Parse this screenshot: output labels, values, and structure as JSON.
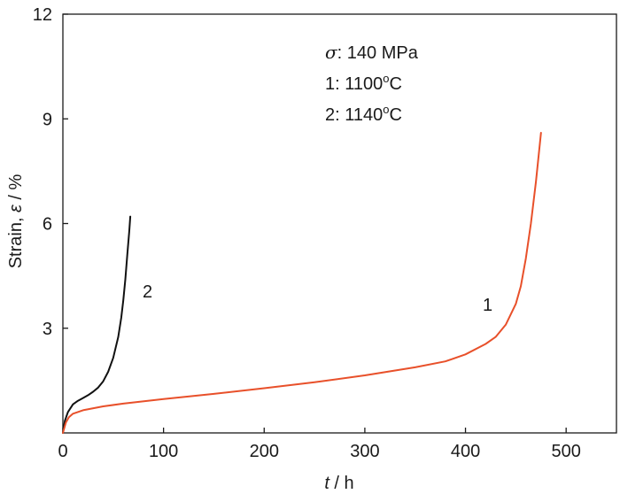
{
  "chart_data": {
    "type": "line",
    "title": "",
    "xlabel": {
      "var": "t",
      "unit": " / h"
    },
    "ylabel": {
      "text": "Strain, ",
      "var": "ε",
      "unit": " / %"
    },
    "xlim": [
      0,
      550
    ],
    "ylim": [
      0,
      12
    ],
    "xticks": [
      0,
      100,
      200,
      300,
      400,
      500
    ],
    "yticks": [
      3,
      6,
      9,
      12
    ],
    "x_tick_labels": [
      "0",
      "100",
      "200",
      "300",
      "400",
      "500"
    ],
    "y_tick_labels": [
      "3",
      "6",
      "9",
      "12"
    ],
    "grid": false,
    "legend": "none",
    "annotations": {
      "sigma_symbol": "σ",
      "sigma_text": ": 140 MPa",
      "line1_prefix": "1: 1100",
      "line2_prefix": "2: 1140",
      "degree": "o",
      "unit": "C"
    },
    "series": [
      {
        "label": "2",
        "color": "#111111",
        "x": [
          0,
          2,
          5,
          10,
          15,
          20,
          25,
          30,
          35,
          40,
          45,
          50,
          55,
          58,
          60,
          62,
          64,
          66,
          67
        ],
        "y": [
          0,
          0.35,
          0.6,
          0.82,
          0.92,
          1.0,
          1.08,
          1.18,
          1.3,
          1.48,
          1.75,
          2.15,
          2.75,
          3.3,
          3.8,
          4.4,
          5.1,
          5.8,
          6.2
        ]
      },
      {
        "label": "1",
        "color": "#e8502a",
        "x": [
          0,
          3,
          6,
          10,
          20,
          40,
          60,
          100,
          150,
          200,
          250,
          300,
          350,
          380,
          400,
          420,
          430,
          440,
          450,
          455,
          460,
          465,
          470,
          475
        ],
        "y": [
          0,
          0.3,
          0.45,
          0.55,
          0.65,
          0.76,
          0.84,
          0.97,
          1.12,
          1.28,
          1.45,
          1.65,
          1.88,
          2.05,
          2.25,
          2.55,
          2.75,
          3.1,
          3.7,
          4.2,
          5.0,
          6.0,
          7.2,
          8.6
        ]
      }
    ]
  }
}
